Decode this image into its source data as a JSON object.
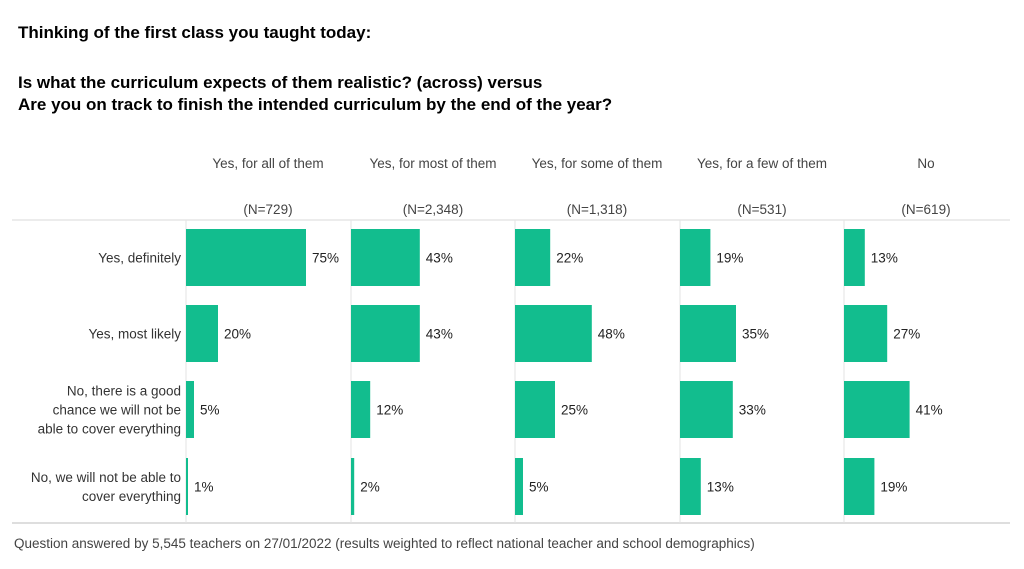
{
  "titles": {
    "line1": "Thinking of the first class you taught today:",
    "line2": "Is what the curriculum expects of them realistic? (across) versus",
    "line3": "Are you on track to finish the intended curriculum by the end of the year?"
  },
  "footnote": "Question answered by 5,545 teachers on 27/01/2022 (results weighted to reflect national teacher and school demographics)",
  "chart_data": {
    "type": "bar",
    "orientation": "horizontal",
    "value_max": 100,
    "bar_color": "#12bd8e",
    "row_labels": [
      [
        "Yes, definitely"
      ],
      [
        "Yes, most likely"
      ],
      [
        "No, there is a good",
        "chance we will not be",
        "able to cover everything"
      ],
      [
        "No, we will not be able to",
        "cover everything"
      ]
    ],
    "columns": [
      {
        "label": "Yes, for all of them",
        "n": "(N=729)",
        "values": [
          75,
          20,
          5,
          1
        ]
      },
      {
        "label": "Yes, for most of them",
        "n": "(N=2,348)",
        "values": [
          43,
          43,
          12,
          2
        ]
      },
      {
        "label": "Yes, for some of them",
        "n": "(N=1,318)",
        "values": [
          22,
          48,
          25,
          5
        ]
      },
      {
        "label": "Yes, for a few of them",
        "n": "(N=531)",
        "values": [
          19,
          35,
          33,
          13
        ]
      },
      {
        "label": "No",
        "n": "(N=619)",
        "values": [
          13,
          27,
          41,
          19
        ]
      }
    ]
  }
}
